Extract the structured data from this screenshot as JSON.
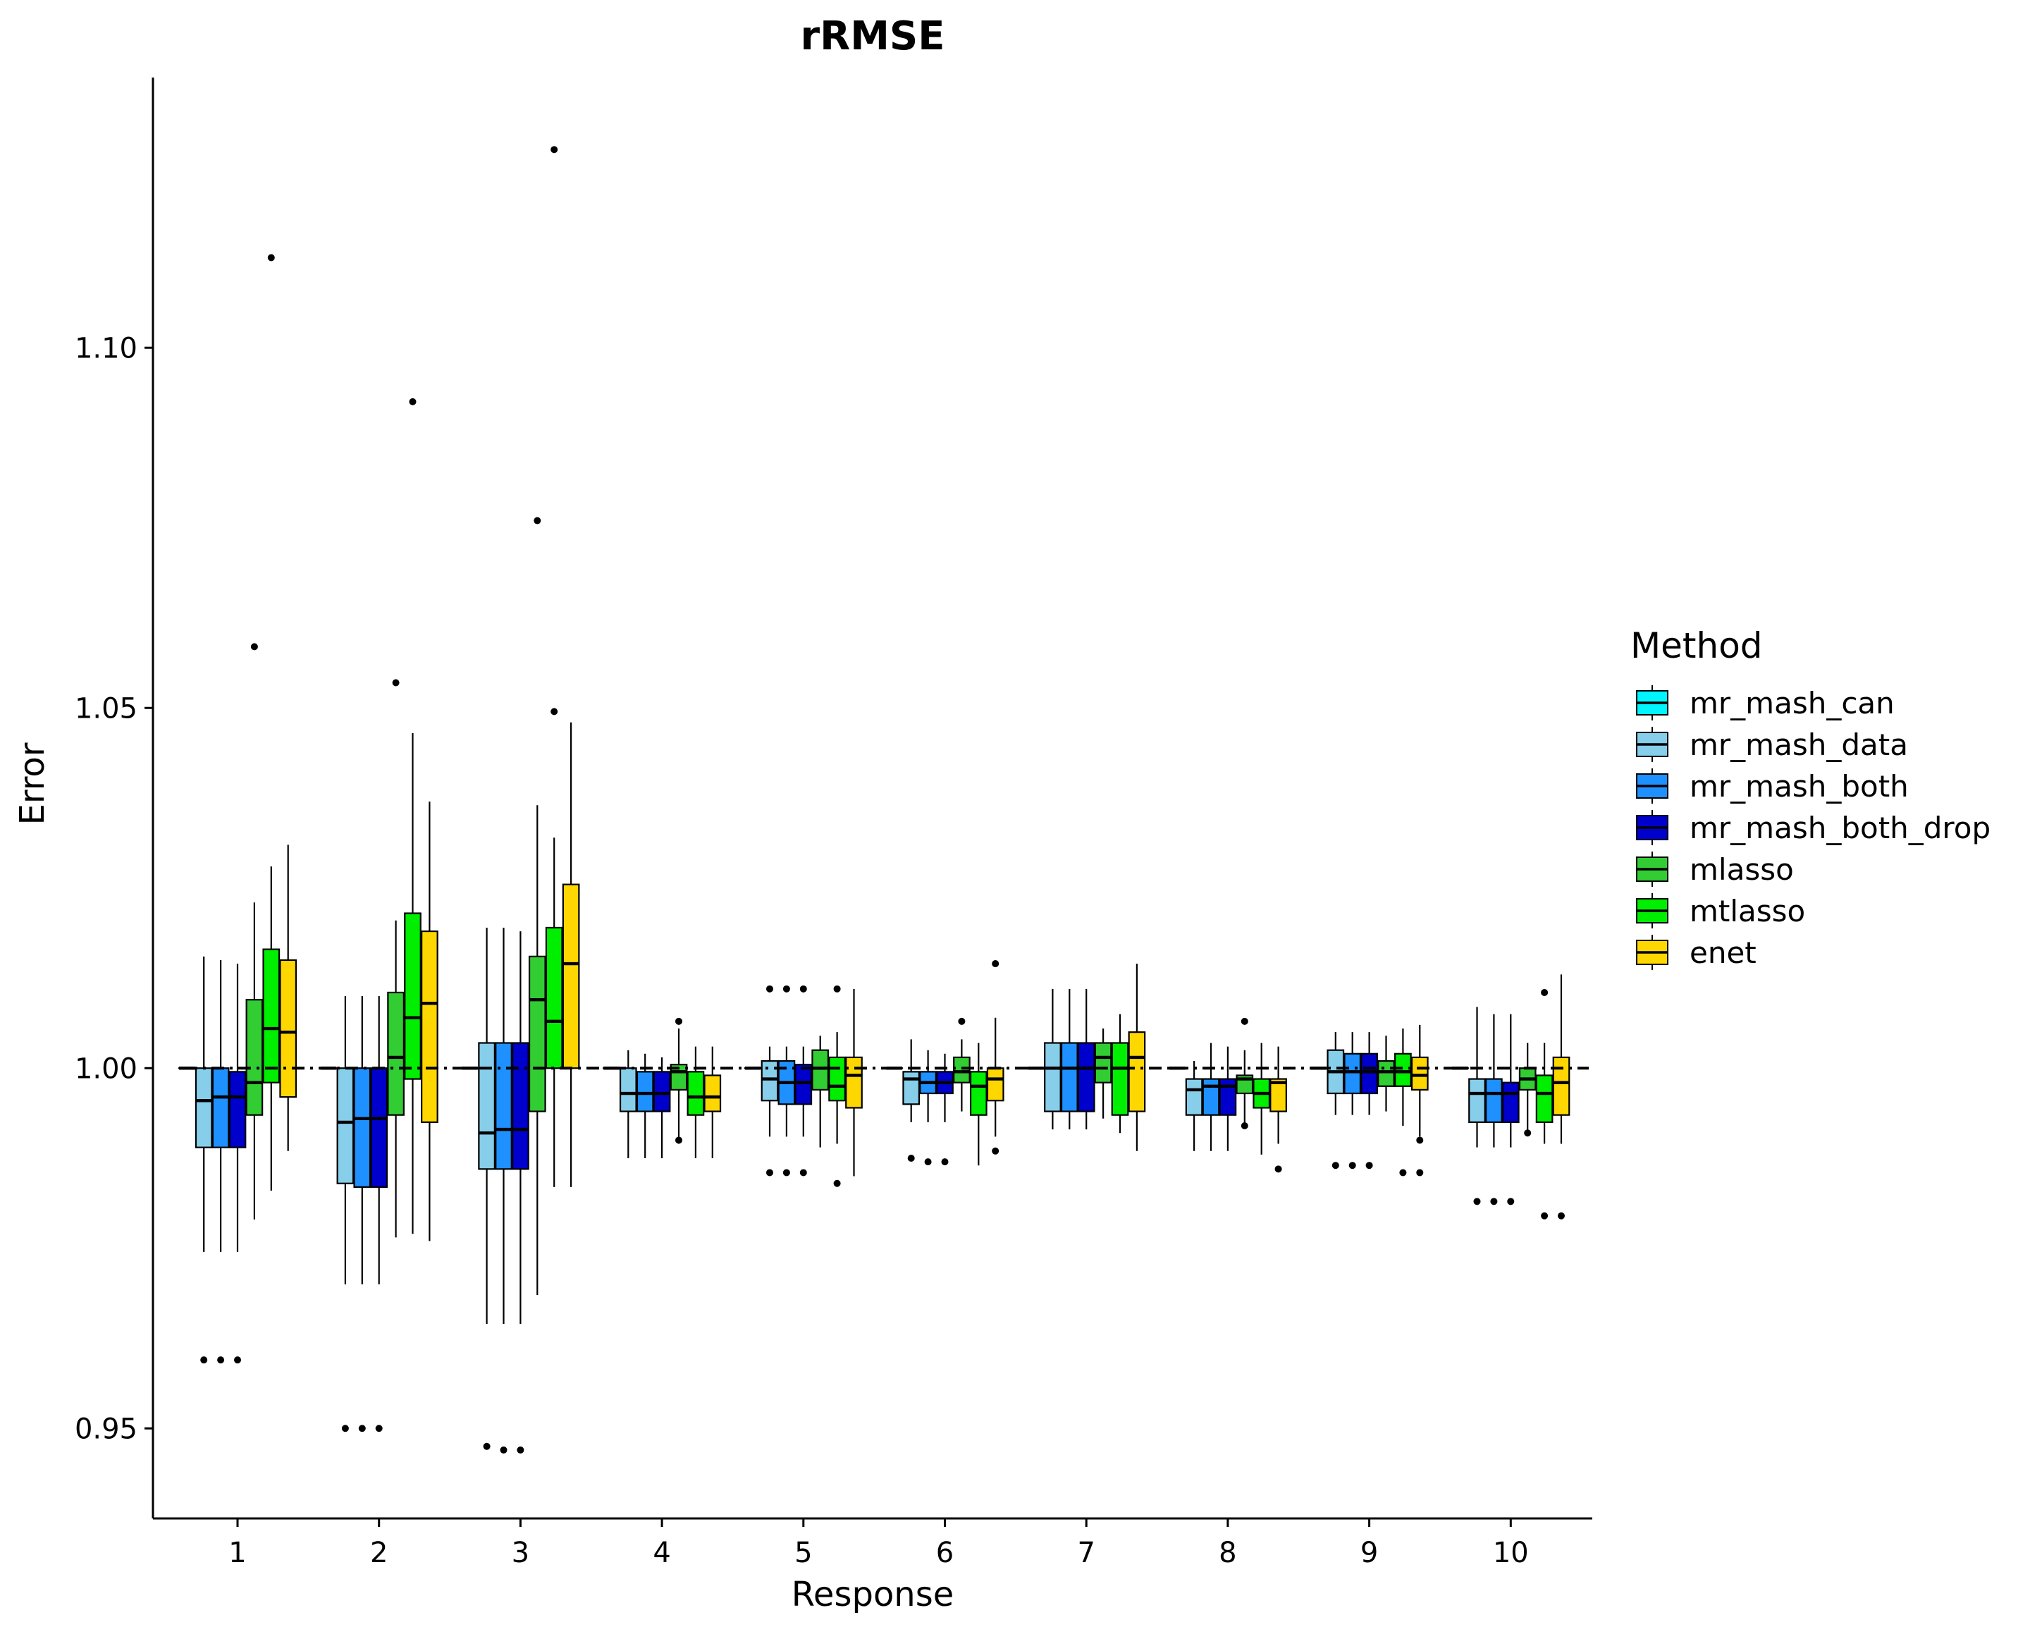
{
  "chart_data": {
    "type": "box",
    "title": "rRMSE",
    "xlabel": "Response",
    "ylabel": "Error",
    "categories": [
      "1",
      "2",
      "3",
      "4",
      "5",
      "6",
      "7",
      "8",
      "9",
      "10"
    ],
    "ylim": [
      0.9375,
      1.1375
    ],
    "yticks": [
      "0.95",
      "1.00",
      "1.05",
      "1.10"
    ],
    "reference_line": 1.0,
    "legend": {
      "title": "Method",
      "position": "right"
    },
    "series": [
      {
        "name": "mr_mash_can",
        "color": "#00f5ff",
        "boxes": [
          {
            "q1": 1.0,
            "med": 1.0,
            "q3": 1.0,
            "lo": 1.0,
            "hi": 1.0,
            "outliers": []
          },
          {
            "q1": 1.0,
            "med": 1.0,
            "q3": 1.0,
            "lo": 1.0,
            "hi": 1.0,
            "outliers": []
          },
          {
            "q1": 1.0,
            "med": 1.0,
            "q3": 1.0,
            "lo": 1.0,
            "hi": 1.0,
            "outliers": []
          },
          {
            "q1": 1.0,
            "med": 1.0,
            "q3": 1.0,
            "lo": 1.0,
            "hi": 1.0,
            "outliers": []
          },
          {
            "q1": 1.0,
            "med": 1.0,
            "q3": 1.0,
            "lo": 1.0,
            "hi": 1.0,
            "outliers": []
          },
          {
            "q1": 1.0,
            "med": 1.0,
            "q3": 1.0,
            "lo": 1.0,
            "hi": 1.0,
            "outliers": []
          },
          {
            "q1": 1.0,
            "med": 1.0,
            "q3": 1.0,
            "lo": 1.0,
            "hi": 1.0,
            "outliers": []
          },
          {
            "q1": 1.0,
            "med": 1.0,
            "q3": 1.0,
            "lo": 1.0,
            "hi": 1.0,
            "outliers": []
          },
          {
            "q1": 1.0,
            "med": 1.0,
            "q3": 1.0,
            "lo": 1.0,
            "hi": 1.0,
            "outliers": []
          },
          {
            "q1": 1.0,
            "med": 1.0,
            "q3": 1.0,
            "lo": 1.0,
            "hi": 1.0,
            "outliers": []
          }
        ]
      },
      {
        "name": "mr_mash_data",
        "color": "#87ceeb",
        "boxes": [
          {
            "q1": 0.989,
            "med": 0.9955,
            "q3": 1.0,
            "lo": 0.9745,
            "hi": 1.0155,
            "outliers": [
              0.9595
            ]
          },
          {
            "q1": 0.984,
            "med": 0.9925,
            "q3": 1.0,
            "lo": 0.97,
            "hi": 1.01,
            "outliers": [
              0.95
            ]
          },
          {
            "q1": 0.986,
            "med": 0.991,
            "q3": 1.0035,
            "lo": 0.9645,
            "hi": 1.0195,
            "outliers": [
              0.9475
            ]
          },
          {
            "q1": 0.994,
            "med": 0.9965,
            "q3": 1.0,
            "lo": 0.9875,
            "hi": 1.0025,
            "outliers": []
          },
          {
            "q1": 0.9955,
            "med": 0.9985,
            "q3": 1.001,
            "lo": 0.9905,
            "hi": 1.003,
            "outliers": [
              0.9855,
              1.011
            ]
          },
          {
            "q1": 0.995,
            "med": 0.9985,
            "q3": 0.9995,
            "lo": 0.9925,
            "hi": 1.004,
            "outliers": [
              0.9875
            ]
          },
          {
            "q1": 0.994,
            "med": 1.0,
            "q3": 1.0035,
            "lo": 0.9915,
            "hi": 1.011,
            "outliers": []
          },
          {
            "q1": 0.9935,
            "med": 0.997,
            "q3": 0.9985,
            "lo": 0.9885,
            "hi": 1.001,
            "outliers": []
          },
          {
            "q1": 0.9965,
            "med": 0.9995,
            "q3": 1.0025,
            "lo": 0.9935,
            "hi": 1.005,
            "outliers": [
              0.9865
            ]
          },
          {
            "q1": 0.9925,
            "med": 0.9965,
            "q3": 0.9985,
            "lo": 0.989,
            "hi": 1.0085,
            "outliers": [
              0.9815
            ]
          }
        ]
      },
      {
        "name": "mr_mash_both",
        "color": "#1e90ff",
        "boxes": [
          {
            "q1": 0.989,
            "med": 0.996,
            "q3": 1.0,
            "lo": 0.9745,
            "hi": 1.015,
            "outliers": [
              0.9595
            ]
          },
          {
            "q1": 0.9835,
            "med": 0.993,
            "q3": 1.0,
            "lo": 0.97,
            "hi": 1.01,
            "outliers": [
              0.95
            ]
          },
          {
            "q1": 0.986,
            "med": 0.9915,
            "q3": 1.0035,
            "lo": 0.9645,
            "hi": 1.0195,
            "outliers": [
              0.947
            ]
          },
          {
            "q1": 0.994,
            "med": 0.9965,
            "q3": 0.9995,
            "lo": 0.9875,
            "hi": 1.002,
            "outliers": []
          },
          {
            "q1": 0.995,
            "med": 0.998,
            "q3": 1.001,
            "lo": 0.9905,
            "hi": 1.003,
            "outliers": [
              0.9855,
              1.011
            ]
          },
          {
            "q1": 0.9965,
            "med": 0.998,
            "q3": 0.9995,
            "lo": 0.9925,
            "hi": 1.0025,
            "outliers": [
              0.987
            ]
          },
          {
            "q1": 0.994,
            "med": 1.0,
            "q3": 1.0035,
            "lo": 0.9915,
            "hi": 1.011,
            "outliers": []
          },
          {
            "q1": 0.9935,
            "med": 0.9975,
            "q3": 0.9985,
            "lo": 0.9885,
            "hi": 1.0035,
            "outliers": []
          },
          {
            "q1": 0.9965,
            "med": 0.9995,
            "q3": 1.002,
            "lo": 0.9935,
            "hi": 1.005,
            "outliers": [
              0.9865
            ]
          },
          {
            "q1": 0.9925,
            "med": 0.9965,
            "q3": 0.9985,
            "lo": 0.989,
            "hi": 1.0075,
            "outliers": [
              0.9815
            ]
          }
        ]
      },
      {
        "name": "mr_mash_both_drop",
        "color": "#0000cd",
        "boxes": [
          {
            "q1": 0.989,
            "med": 0.996,
            "q3": 0.9995,
            "lo": 0.9745,
            "hi": 1.0145,
            "outliers": [
              0.9595
            ]
          },
          {
            "q1": 0.9835,
            "med": 0.993,
            "q3": 1.0,
            "lo": 0.97,
            "hi": 1.01,
            "outliers": [
              0.95
            ]
          },
          {
            "q1": 0.986,
            "med": 0.9915,
            "q3": 1.0035,
            "lo": 0.9645,
            "hi": 1.019,
            "outliers": [
              0.947
            ]
          },
          {
            "q1": 0.994,
            "med": 0.9965,
            "q3": 0.9995,
            "lo": 0.9875,
            "hi": 1.0015,
            "outliers": []
          },
          {
            "q1": 0.995,
            "med": 0.998,
            "q3": 1.0005,
            "lo": 0.9905,
            "hi": 1.003,
            "outliers": [
              0.9855,
              1.011
            ]
          },
          {
            "q1": 0.9965,
            "med": 0.998,
            "q3": 0.9995,
            "lo": 0.9925,
            "hi": 1.002,
            "outliers": [
              0.987
            ]
          },
          {
            "q1": 0.994,
            "med": 1.0,
            "q3": 1.0035,
            "lo": 0.9915,
            "hi": 1.011,
            "outliers": []
          },
          {
            "q1": 0.9935,
            "med": 0.9975,
            "q3": 0.9985,
            "lo": 0.9885,
            "hi": 1.003,
            "outliers": []
          },
          {
            "q1": 0.9965,
            "med": 0.9995,
            "q3": 1.002,
            "lo": 0.9935,
            "hi": 1.005,
            "outliers": [
              0.9865
            ]
          },
          {
            "q1": 0.9925,
            "med": 0.9965,
            "q3": 0.998,
            "lo": 0.989,
            "hi": 1.0075,
            "outliers": [
              0.9815
            ]
          }
        ]
      },
      {
        "name": "mlasso",
        "color": "#32cd32",
        "boxes": [
          {
            "q1": 0.9935,
            "med": 0.998,
            "q3": 1.0095,
            "lo": 0.979,
            "hi": 1.023,
            "outliers": [
              1.0585
            ]
          },
          {
            "q1": 0.9935,
            "med": 1.0015,
            "q3": 1.0105,
            "lo": 0.9765,
            "hi": 1.0205,
            "outliers": [
              1.0535
            ]
          },
          {
            "q1": 0.994,
            "med": 1.0095,
            "q3": 1.0155,
            "lo": 0.9685,
            "hi": 1.0365,
            "outliers": [
              1.076
            ]
          },
          {
            "q1": 0.997,
            "med": 0.9995,
            "q3": 1.0005,
            "lo": 0.9895,
            "hi": 1.0055,
            "outliers": [
              0.99,
              1.0065
            ]
          },
          {
            "q1": 0.997,
            "med": 1.0,
            "q3": 1.0025,
            "lo": 0.989,
            "hi": 1.0045,
            "outliers": []
          },
          {
            "q1": 0.998,
            "med": 0.9995,
            "q3": 1.0015,
            "lo": 0.994,
            "hi": 1.004,
            "outliers": [
              1.0065
            ]
          },
          {
            "q1": 0.998,
            "med": 1.0015,
            "q3": 1.0035,
            "lo": 0.993,
            "hi": 1.0055,
            "outliers": []
          },
          {
            "q1": 0.9965,
            "med": 0.9985,
            "q3": 0.999,
            "lo": 0.992,
            "hi": 1.0025,
            "outliers": [
              0.992,
              1.0065
            ]
          },
          {
            "q1": 0.9975,
            "med": 0.9995,
            "q3": 1.001,
            "lo": 0.994,
            "hi": 1.0045,
            "outliers": []
          },
          {
            "q1": 0.997,
            "med": 0.9985,
            "q3": 1.0,
            "lo": 0.991,
            "hi": 1.0035,
            "outliers": [
              0.991
            ]
          }
        ]
      },
      {
        "name": "mtlasso",
        "color": "#00ee00",
        "boxes": [
          {
            "q1": 0.998,
            "med": 1.0055,
            "q3": 1.0165,
            "lo": 0.983,
            "hi": 1.028,
            "outliers": [
              1.1125
            ]
          },
          {
            "q1": 0.9985,
            "med": 1.007,
            "q3": 1.0215,
            "lo": 0.977,
            "hi": 1.0465,
            "outliers": [
              1.0925
            ]
          },
          {
            "q1": 1.0,
            "med": 1.0065,
            "q3": 1.0195,
            "lo": 0.9835,
            "hi": 1.032,
            "outliers": [
              1.0495,
              1.1275
            ]
          },
          {
            "q1": 0.9935,
            "med": 0.996,
            "q3": 0.9995,
            "lo": 0.9875,
            "hi": 1.003,
            "outliers": []
          },
          {
            "q1": 0.9955,
            "med": 0.9975,
            "q3": 1.0015,
            "lo": 0.9895,
            "hi": 1.005,
            "outliers": [
              0.984,
              1.011
            ]
          },
          {
            "q1": 0.9935,
            "med": 0.9975,
            "q3": 0.9995,
            "lo": 0.9865,
            "hi": 1.0035,
            "outliers": []
          },
          {
            "q1": 0.9935,
            "med": 1.0,
            "q3": 1.0035,
            "lo": 0.991,
            "hi": 1.0075,
            "outliers": []
          },
          {
            "q1": 0.9945,
            "med": 0.9965,
            "q3": 0.9985,
            "lo": 0.988,
            "hi": 1.0035,
            "outliers": []
          },
          {
            "q1": 0.9975,
            "med": 0.9995,
            "q3": 1.002,
            "lo": 0.992,
            "hi": 1.0055,
            "outliers": [
              0.9855
            ]
          },
          {
            "q1": 0.9925,
            "med": 0.9965,
            "q3": 0.999,
            "lo": 0.9895,
            "hi": 1.0035,
            "outliers": [
              0.9795,
              1.0105
            ]
          }
        ]
      },
      {
        "name": "enet",
        "color": "#ffd700",
        "boxes": [
          {
            "q1": 0.996,
            "med": 1.005,
            "q3": 1.015,
            "lo": 0.9885,
            "hi": 1.031,
            "outliers": []
          },
          {
            "q1": 0.9925,
            "med": 1.009,
            "q3": 1.019,
            "lo": 0.976,
            "hi": 1.037,
            "outliers": []
          },
          {
            "q1": 1.0,
            "med": 1.0145,
            "q3": 1.0255,
            "lo": 0.9835,
            "hi": 1.048,
            "outliers": []
          },
          {
            "q1": 0.994,
            "med": 0.996,
            "q3": 0.999,
            "lo": 0.9875,
            "hi": 1.003,
            "outliers": []
          },
          {
            "q1": 0.9945,
            "med": 0.999,
            "q3": 1.0015,
            "lo": 0.985,
            "hi": 1.011,
            "outliers": []
          },
          {
            "q1": 0.9955,
            "med": 0.9985,
            "q3": 1.0,
            "lo": 0.9905,
            "hi": 1.007,
            "outliers": [
              0.9885,
              1.0145
            ]
          },
          {
            "q1": 0.994,
            "med": 1.0015,
            "q3": 1.005,
            "lo": 0.9885,
            "hi": 1.0145,
            "outliers": []
          },
          {
            "q1": 0.994,
            "med": 0.998,
            "q3": 0.9985,
            "lo": 0.9895,
            "hi": 1.003,
            "outliers": [
              0.986
            ]
          },
          {
            "q1": 0.997,
            "med": 0.999,
            "q3": 1.0015,
            "lo": 0.9905,
            "hi": 1.006,
            "outliers": [
              0.9855,
              0.99
            ]
          },
          {
            "q1": 0.9935,
            "med": 0.998,
            "q3": 1.0015,
            "lo": 0.9895,
            "hi": 1.013,
            "outliers": [
              0.9795
            ]
          }
        ]
      }
    ]
  }
}
